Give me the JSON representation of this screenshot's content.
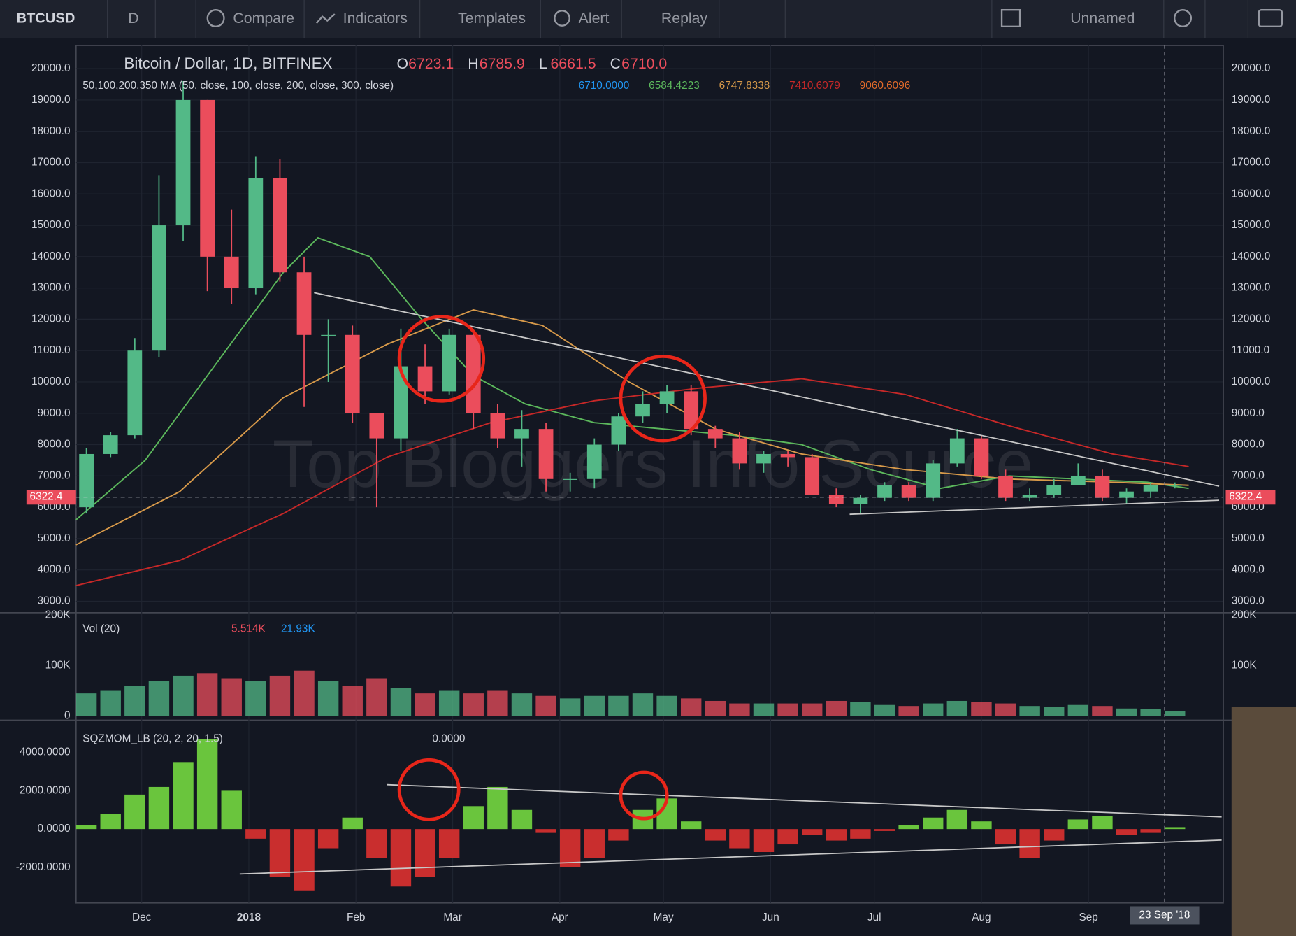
{
  "toolbar": {
    "symbol": "BTCUSD",
    "interval": "D",
    "buttons": [
      "Compare",
      "Indicators",
      "Templates",
      "Alert",
      "Replay"
    ],
    "layout": "Unnamed"
  },
  "legend": {
    "title": "Bitcoin / Dollar, 1D, BITFINEX",
    "ohlc": [
      {
        "key": "O",
        "value": "6723.1"
      },
      {
        "key": "H",
        "value": "6785.9"
      },
      {
        "key": "L",
        "value": "6661.5"
      },
      {
        "key": "C",
        "value": "6710.0"
      }
    ],
    "ma": "50,100,200,350 MA (50, close, 100, close, 200, close, 300, close)",
    "ma_values": [
      "6710.0000",
      "6584.4223",
      "6747.8338",
      "7410.6079",
      "9060.6096"
    ],
    "volume": "Vol (20)",
    "volume_values": [
      "5.514K",
      "21.93K"
    ],
    "momentum": "SQZMOM_LB (20, 2, 20, 1.5)",
    "momentum_value": "0.0000"
  },
  "watermark": "Top Bloggers Info Source",
  "chart_data": [
    {
      "type": "candlestick",
      "xlim": [
        0,
        332
      ],
      "ylim": [
        2660,
        20740
      ],
      "xticks": [
        {
          "value": 19,
          "label": "Dec"
        },
        {
          "value": 50,
          "label": "2018"
        },
        {
          "value": 81,
          "label": "Feb"
        },
        {
          "value": 109,
          "label": "Mar"
        },
        {
          "value": 140,
          "label": "Apr"
        },
        {
          "value": 170,
          "label": "May"
        },
        {
          "value": 201,
          "label": "Jun"
        },
        {
          "value": 231,
          "label": "Jul"
        },
        {
          "value": 262,
          "label": "Aug"
        },
        {
          "value": 293,
          "label": "Sep"
        }
      ],
      "yticks": [
        {
          "value": 3000,
          "label": "3000.0"
        },
        {
          "value": 4000,
          "label": "4000.0"
        },
        {
          "value": 5000,
          "label": "5000.0"
        },
        {
          "value": 6000,
          "label": "6000.0"
        },
        {
          "value": 7000,
          "label": "7000.0"
        },
        {
          "value": 8000,
          "label": "8000.0"
        },
        {
          "value": 9000,
          "label": "9000.0"
        },
        {
          "value": 10000,
          "label": "10000.0"
        },
        {
          "value": 11000,
          "label": "11000.0"
        },
        {
          "value": 12000,
          "label": "12000.0"
        },
        {
          "value": 13000,
          "label": "13000.0"
        },
        {
          "value": 14000,
          "label": "14000.0"
        },
        {
          "value": 15000,
          "label": "15000.0"
        },
        {
          "value": 16000,
          "label": "16000.0"
        },
        {
          "value": 17000,
          "label": "17000.0"
        },
        {
          "value": 18000,
          "label": "18000.0"
        },
        {
          "value": 19000,
          "label": "19000.0"
        },
        {
          "value": 20000,
          "label": "20000.0"
        }
      ],
      "grid": true,
      "up_color": "#53b987",
      "down_color": "#eb4d5c",
      "x": [
        3,
        10,
        17,
        24,
        31,
        38,
        45,
        52,
        59,
        66,
        73,
        80,
        87,
        94,
        101,
        108,
        115,
        122,
        129,
        136,
        143,
        150,
        157,
        164,
        171,
        178,
        185,
        192,
        199,
        206,
        213,
        220,
        227,
        234,
        241,
        248,
        255,
        262,
        269,
        276,
        283,
        290,
        297,
        304,
        311,
        318
      ],
      "open": [
        6000,
        7700,
        8300,
        11000,
        15000,
        19000,
        14000,
        13000,
        16500,
        13500,
        11500,
        11500,
        9000,
        8200,
        10500,
        9700,
        11500,
        9000,
        8200,
        8500,
        6900,
        6900,
        8000,
        8900,
        9300,
        9700,
        8500,
        8200,
        7400,
        7700,
        7600,
        6400,
        6100,
        6300,
        6700,
        6300,
        7400,
        8200,
        7000,
        6300,
        6400,
        6700,
        7000,
        6300,
        6500,
        6700
      ],
      "high": [
        7900,
        8400,
        11400,
        16600,
        19600,
        19000,
        15500,
        17200,
        17100,
        14000,
        12000,
        11800,
        9000,
        11700,
        11200,
        11700,
        11600,
        9300,
        9100,
        8700,
        7100,
        8200,
        9000,
        9700,
        9900,
        9900,
        8600,
        8400,
        7800,
        7800,
        7700,
        6600,
        6400,
        6800,
        6800,
        7500,
        8500,
        8300,
        7200,
        6600,
        6900,
        7400,
        7200,
        6600,
        6800,
        6790
      ],
      "low": [
        5800,
        7600,
        8200,
        10800,
        14500,
        12900,
        12500,
        12800,
        13200,
        9200,
        10000,
        8700,
        6000,
        7800,
        9300,
        9600,
        8500,
        7900,
        7300,
        6500,
        6500,
        6600,
        7800,
        8700,
        9000,
        8300,
        7900,
        7200,
        7100,
        7300,
        6400,
        6000,
        5800,
        6200,
        6200,
        6200,
        7300,
        6900,
        6200,
        6200,
        6300,
        6700,
        6200,
        6100,
        6300,
        6600
      ],
      "close": [
        7700,
        8300,
        11000,
        15000,
        19000,
        14000,
        13000,
        16500,
        13500,
        11500,
        11500,
        9000,
        8200,
        10500,
        9700,
        11500,
        9000,
        8200,
        8500,
        6900,
        6900,
        8000,
        8900,
        9300,
        9700,
        8500,
        8200,
        7400,
        7700,
        7600,
        6400,
        6100,
        6300,
        6700,
        6300,
        7400,
        8200,
        7000,
        6300,
        6400,
        6700,
        7000,
        6300,
        6500,
        6700,
        6710
      ],
      "lines": [
        {
          "color": "#5cb85c",
          "x": [
            0,
            20,
            40,
            60,
            70,
            85,
            100,
            115,
            130,
            150,
            170,
            190,
            210,
            230,
            250,
            270,
            290,
            310,
            322
          ],
          "values": [
            5600,
            7500,
            10500,
            13500,
            14600,
            14000,
            12000,
            10200,
            9300,
            8700,
            8500,
            8300,
            8000,
            7200,
            6600,
            7000,
            6900,
            6800,
            6600
          ]
        },
        {
          "color": "#d89a4a",
          "x": [
            0,
            30,
            60,
            90,
            115,
            135,
            160,
            185,
            210,
            240,
            270,
            300,
            322
          ],
          "values": [
            4800,
            6500,
            9500,
            11200,
            12300,
            11800,
            10000,
            8500,
            7700,
            7200,
            6900,
            6800,
            6700
          ]
        },
        {
          "color": "#c62828",
          "x": [
            0,
            30,
            60,
            90,
            120,
            150,
            180,
            210,
            240,
            270,
            300,
            322
          ],
          "values": [
            3500,
            4300,
            5800,
            7600,
            8700,
            9400,
            9800,
            10100,
            9600,
            8600,
            7700,
            7300
          ]
        }
      ],
      "price_line": 6322.4,
      "cursor": {
        "value": 315,
        "label": "23 Sep '18"
      }
    },
    {
      "type": "bar",
      "ylim": [
        0,
        200000
      ],
      "yticks": [
        {
          "value": 0,
          "label": "0"
        },
        {
          "value": 100000,
          "label": "100K"
        },
        {
          "value": 200000,
          "label": "200K"
        }
      ],
      "x": [
        3,
        10,
        17,
        24,
        31,
        38,
        45,
        52,
        59,
        66,
        73,
        80,
        87,
        94,
        101,
        108,
        115,
        122,
        129,
        136,
        143,
        150,
        157,
        164,
        171,
        178,
        185,
        192,
        199,
        206,
        213,
        220,
        227,
        234,
        241,
        248,
        255,
        262,
        269,
        276,
        283,
        290,
        297,
        304,
        311,
        318
      ],
      "values": [
        45000,
        50000,
        60000,
        70000,
        80000,
        85000,
        75000,
        70000,
        80000,
        90000,
        70000,
        60000,
        75000,
        55000,
        45000,
        50000,
        45000,
        50000,
        45000,
        40000,
        35000,
        40000,
        40000,
        45000,
        40000,
        35000,
        30000,
        25000,
        25000,
        25000,
        25000,
        30000,
        28000,
        22000,
        20000,
        25000,
        30000,
        28000,
        25000,
        20000,
        18000,
        22000,
        20000,
        15000,
        14000,
        10000
      ]
    },
    {
      "type": "bar",
      "ylim": [
        -3770,
        5470
      ],
      "yticks": [
        {
          "value": -2000,
          "label": "-2000.0000"
        },
        {
          "value": 0,
          "label": "0.0000"
        },
        {
          "value": 2000,
          "label": "2000.0000"
        },
        {
          "value": 4000,
          "label": "4000.0000"
        }
      ],
      "positive_color": "#6fcf3f",
      "negative_color": "#d32f2f",
      "x": [
        3,
        10,
        17,
        24,
        31,
        38,
        45,
        52,
        59,
        66,
        73,
        80,
        87,
        94,
        101,
        108,
        115,
        122,
        129,
        136,
        143,
        150,
        157,
        164,
        171,
        178,
        185,
        192,
        199,
        206,
        213,
        220,
        227,
        234,
        241,
        248,
        255,
        262,
        269,
        276,
        283,
        290,
        297,
        304,
        311,
        318
      ],
      "values": [
        200,
        800,
        1800,
        2200,
        3500,
        4700,
        2000,
        -500,
        -2500,
        -3200,
        -1000,
        600,
        -1500,
        -3000,
        -2500,
        -1500,
        1200,
        2200,
        1000,
        -200,
        -2000,
        -1500,
        -600,
        1000,
        1600,
        400,
        -600,
        -1000,
        -1200,
        -800,
        -300,
        -600,
        -500,
        -100,
        200,
        600,
        1000,
        400,
        -800,
        -1500,
        -600,
        500,
        700,
        -300,
        -200,
        100
      ]
    }
  ]
}
